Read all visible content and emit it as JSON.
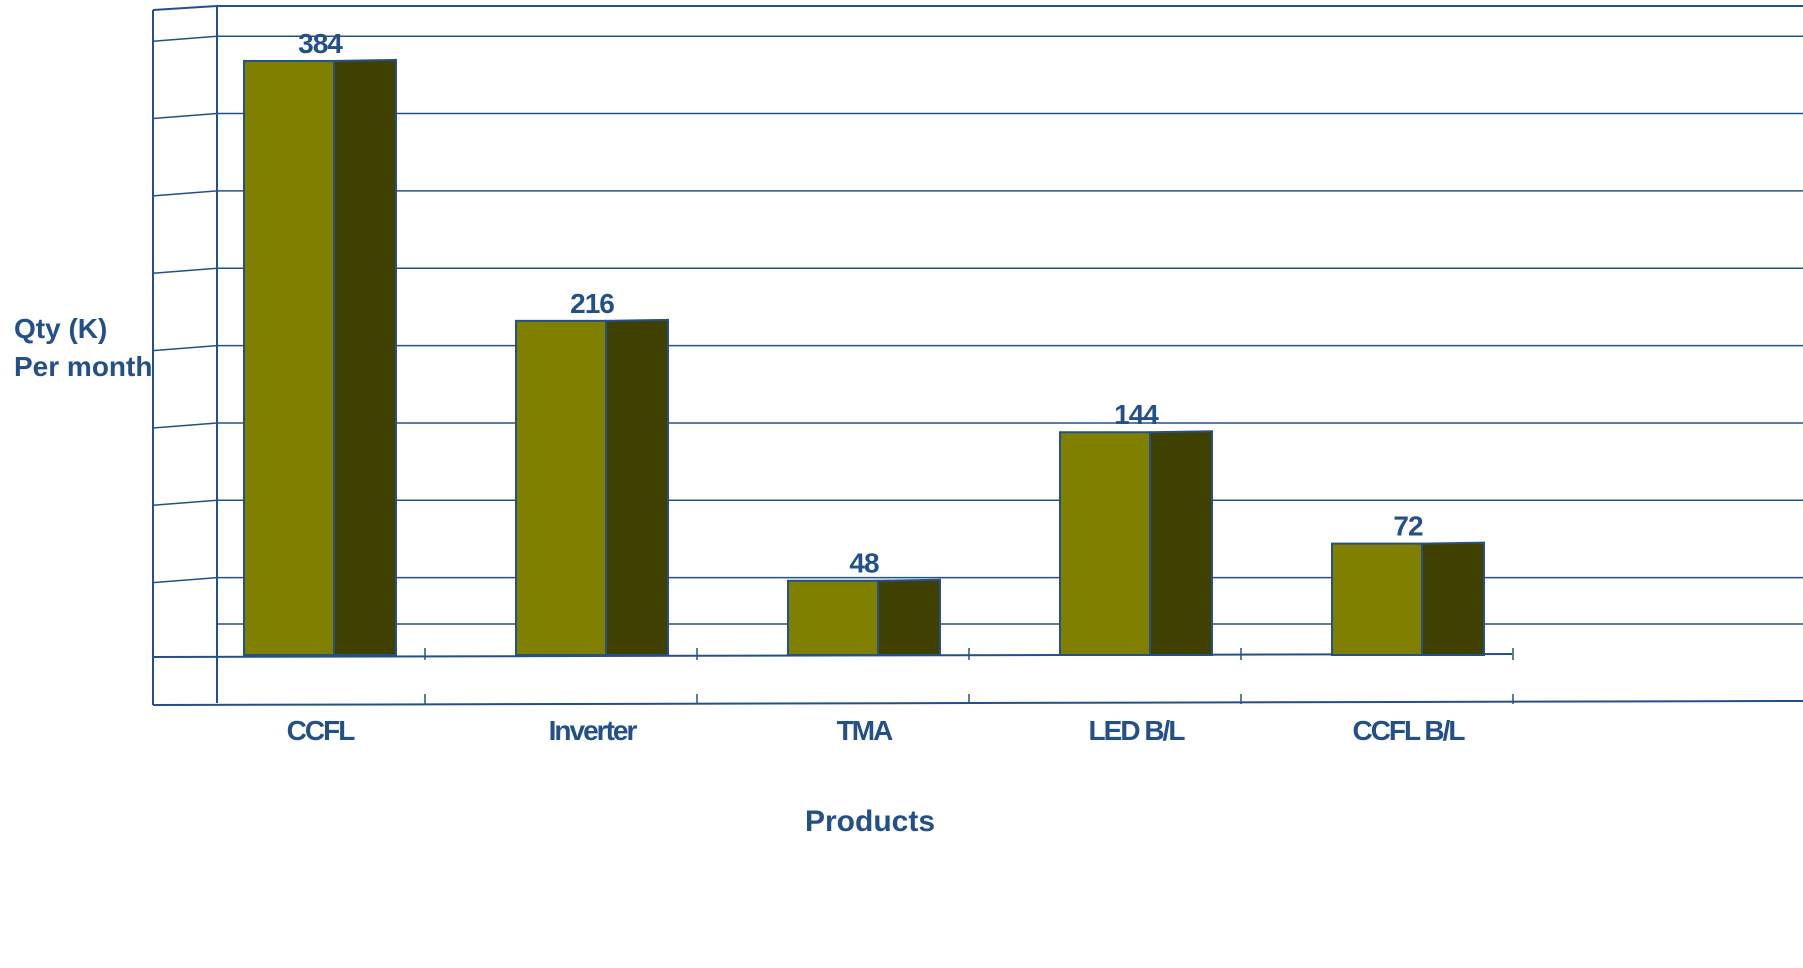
{
  "chart_data": {
    "type": "bar",
    "title": "",
    "xlabel": "Products",
    "ylabel_lines": [
      "Qty (K)",
      "Per month"
    ],
    "categories": [
      "CCFL",
      "Inverter",
      "TMA",
      "LED B/L",
      "CCFL B/L"
    ],
    "values": [
      384,
      216,
      48,
      144,
      72
    ],
    "data_labels": [
      "384",
      "216",
      "48",
      "144",
      "72"
    ],
    "ylim": [
      0,
      400
    ],
    "grid": true,
    "legend": "none",
    "style": "3d-bar",
    "colors": {
      "bar_front": "#808000",
      "bar_side": "#404000",
      "axis": "#24508a",
      "text": "#24508a"
    }
  }
}
